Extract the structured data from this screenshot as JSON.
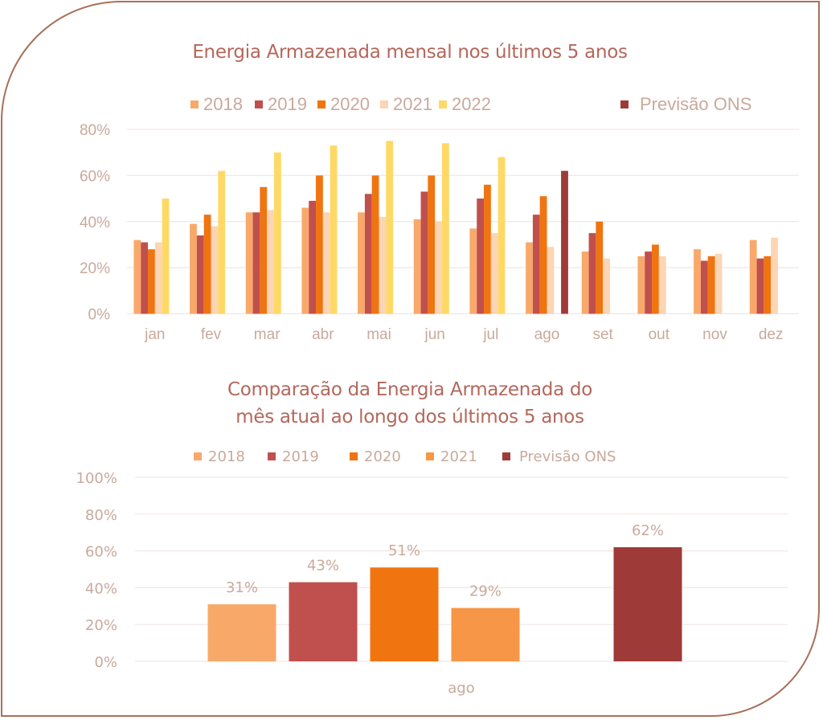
{
  "chart_data": [
    {
      "type": "bar",
      "title": "Energia Armazenada mensal nos últimos 5 anos",
      "xlabel": "",
      "ylabel": "",
      "ylim": [
        0,
        80
      ],
      "yticks": [
        "0%",
        "20%",
        "40%",
        "60%",
        "80%"
      ],
      "grid": true,
      "legend_position": "top",
      "categories": [
        "jan",
        "fev",
        "mar",
        "abr",
        "mai",
        "jun",
        "jul",
        "ago",
        "set",
        "out",
        "nov",
        "dez"
      ],
      "series": [
        {
          "name": "2018",
          "color": "#F8A96A",
          "values": [
            32,
            39,
            44,
            46,
            44,
            41,
            37,
            31,
            27,
            25,
            28,
            32
          ]
        },
        {
          "name": "2019",
          "color": "#C0504D",
          "values": [
            31,
            34,
            44,
            49,
            52,
            53,
            50,
            43,
            35,
            27,
            23,
            24
          ]
        },
        {
          "name": "2020",
          "color": "#F07410",
          "values": [
            28,
            43,
            55,
            60,
            60,
            60,
            56,
            51,
            40,
            30,
            25,
            25
          ]
        },
        {
          "name": "2021",
          "color": "#FCD5B4",
          "values": [
            31,
            38,
            45,
            44,
            42,
            40,
            35,
            29,
            24,
            25,
            26,
            33
          ]
        },
        {
          "name": "2022",
          "color": "#FFD966",
          "values": [
            50,
            62,
            70,
            73,
            75,
            74,
            68,
            null,
            null,
            null,
            null,
            null
          ]
        },
        {
          "name": "Previsão ONS",
          "color": "#9E3A38",
          "values": [
            null,
            null,
            null,
            null,
            null,
            null,
            null,
            62,
            null,
            null,
            null,
            null
          ]
        }
      ]
    },
    {
      "type": "bar",
      "title": "Comparação da Energia Armazenada do mês atual ao longo dos últimos 5 anos",
      "title_lines": [
        "Comparação da Energia Armazenada do",
        "mês atual ao longo dos últimos 5 anos"
      ],
      "xlabel": "",
      "ylabel": "",
      "ylim": [
        0,
        100
      ],
      "yticks": [
        "0%",
        "20%",
        "40%",
        "60%",
        "80%",
        "100%"
      ],
      "grid": true,
      "legend_position": "top",
      "categories": [
        "ago"
      ],
      "series": [
        {
          "name": "2018",
          "color": "#F8A96A",
          "values": [
            31
          ],
          "label": "31%"
        },
        {
          "name": "2019",
          "color": "#C0504D",
          "values": [
            43
          ],
          "label": "43%"
        },
        {
          "name": "2020",
          "color": "#F07410",
          "values": [
            51
          ],
          "label": "51%"
        },
        {
          "name": "2021",
          "color": "#F79646",
          "values": [
            29
          ],
          "label": "29%"
        },
        {
          "name": "Previsão ONS",
          "color": "#9E3A38",
          "values": [
            62
          ],
          "label": "62%"
        }
      ]
    }
  ],
  "colors": {
    "frame": "#A8705A",
    "title": "#B4675B",
    "tick_text": "#C9A99C",
    "grid": "#F2E6E3"
  }
}
